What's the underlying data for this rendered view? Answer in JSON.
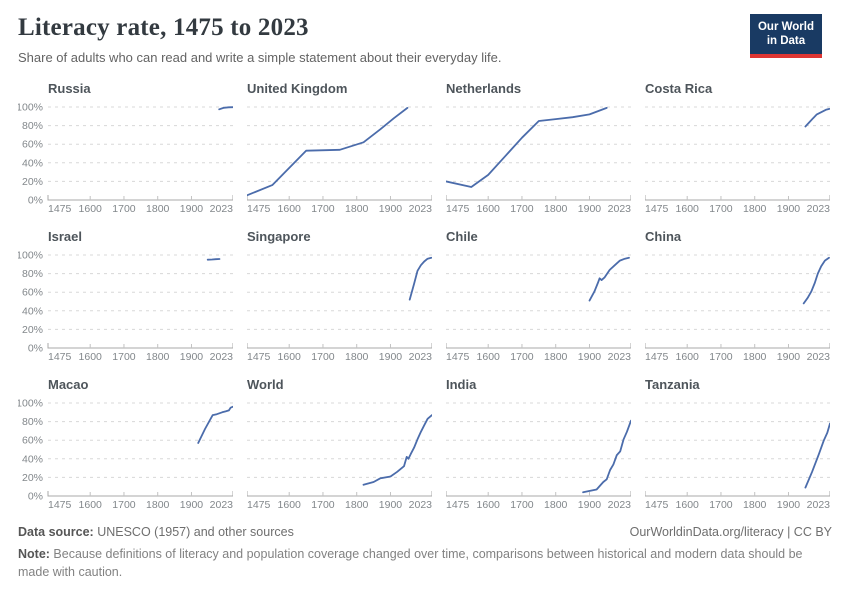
{
  "header": {
    "title": "Literacy rate, 1475 to 2023",
    "subtitle": "Share of adults who can read and write a simple statement about their everyday life.",
    "logo": {
      "line1": "Our World",
      "line2": "in Data",
      "bg_color": "#193A63",
      "accent_color": "#DE3532"
    }
  },
  "footer": {
    "datasource_label": "Data source:",
    "datasource_value": " UNESCO (1957) and other sources",
    "link": "OurWorldinData.org/literacy | CC BY",
    "note_label": "Note:",
    "note_value": " Because definitions of literacy and population coverage changed over time, comparisons between historical and modern data should be made with caution."
  },
  "chart_data": {
    "type": "line",
    "title": "Literacy rate, 1475 to 2023",
    "subtitle": "Share of adults who can read and write a simple statement about their everyday life.",
    "layout": "small-multiples 4x3",
    "x_range": [
      1475,
      2023
    ],
    "y_range": [
      0,
      100
    ],
    "x_ticks": [
      1475,
      1600,
      1700,
      1800,
      1900,
      2023
    ],
    "y_ticks": [
      0,
      20,
      40,
      60,
      80,
      100
    ],
    "y_tick_suffix": "%",
    "grid": "dashed horizontal gridlines",
    "legend": "none",
    "line_color": "#4B6CAB",
    "panels": [
      {
        "name": "Russia",
        "points": [
          [
            1982,
            97.5
          ],
          [
            1995,
            99
          ],
          [
            2010,
            99.7
          ],
          [
            2023,
            99.8
          ]
        ]
      },
      {
        "name": "United Kingdom",
        "points": [
          [
            1475,
            5
          ],
          [
            1550,
            16
          ],
          [
            1650,
            53
          ],
          [
            1750,
            54
          ],
          [
            1820,
            62
          ],
          [
            1870,
            76
          ],
          [
            1910,
            88
          ],
          [
            1950,
            99
          ]
        ]
      },
      {
        "name": "Netherlands",
        "points": [
          [
            1475,
            20
          ],
          [
            1550,
            14
          ],
          [
            1600,
            27
          ],
          [
            1650,
            47
          ],
          [
            1700,
            67
          ],
          [
            1750,
            85
          ],
          [
            1800,
            87
          ],
          [
            1850,
            89
          ],
          [
            1900,
            92
          ],
          [
            1951,
            99
          ]
        ]
      },
      {
        "name": "Costa Rica",
        "points": [
          [
            1950,
            79
          ],
          [
            1963,
            84
          ],
          [
            1973,
            88
          ],
          [
            1984,
            92
          ],
          [
            2000,
            95
          ],
          [
            2011,
            97
          ],
          [
            2021,
            98
          ]
        ]
      },
      {
        "name": "Israel",
        "points": [
          [
            1948,
            95
          ],
          [
            1961,
            95.2
          ],
          [
            1972,
            95.5
          ],
          [
            1983,
            95.7
          ]
        ]
      },
      {
        "name": "Singapore",
        "points": [
          [
            1957,
            52
          ],
          [
            1970,
            69
          ],
          [
            1980,
            83
          ],
          [
            1990,
            89
          ],
          [
            2000,
            93
          ],
          [
            2010,
            96
          ],
          [
            2021,
            97
          ]
        ]
      },
      {
        "name": "Chile",
        "points": [
          [
            1900,
            51
          ],
          [
            1915,
            61
          ],
          [
            1925,
            70
          ],
          [
            1930,
            75
          ],
          [
            1936,
            73
          ],
          [
            1945,
            76
          ],
          [
            1960,
            84
          ],
          [
            1975,
            89
          ],
          [
            1990,
            94
          ],
          [
            2005,
            96
          ],
          [
            2017,
            97
          ]
        ]
      },
      {
        "name": "China",
        "points": [
          [
            1945,
            48
          ],
          [
            1957,
            54
          ],
          [
            1968,
            61
          ],
          [
            1978,
            70
          ],
          [
            1987,
            80
          ],
          [
            1997,
            88
          ],
          [
            2008,
            94
          ],
          [
            2020,
            97
          ]
        ]
      },
      {
        "name": "Macao",
        "points": [
          [
            1920,
            57
          ],
          [
            1940,
            72
          ],
          [
            1963,
            87
          ],
          [
            1975,
            88
          ],
          [
            1991,
            90
          ],
          [
            2001,
            91
          ],
          [
            2011,
            92
          ],
          [
            2016,
            95
          ],
          [
            2023,
            96
          ]
        ]
      },
      {
        "name": "World",
        "points": [
          [
            1820,
            12
          ],
          [
            1850,
            15
          ],
          [
            1870,
            19
          ],
          [
            1900,
            21
          ],
          [
            1920,
            26
          ],
          [
            1940,
            32
          ],
          [
            1948,
            42
          ],
          [
            1953,
            40
          ],
          [
            1960,
            45
          ],
          [
            1970,
            52
          ],
          [
            1980,
            61
          ],
          [
            1990,
            69
          ],
          [
            2000,
            76
          ],
          [
            2010,
            83
          ],
          [
            2023,
            87
          ]
        ]
      },
      {
        "name": "India",
        "points": [
          [
            1881,
            4
          ],
          [
            1901,
            5.5
          ],
          [
            1921,
            7
          ],
          [
            1941,
            15
          ],
          [
            1951,
            18
          ],
          [
            1961,
            28
          ],
          [
            1971,
            34
          ],
          [
            1981,
            44
          ],
          [
            1991,
            48
          ],
          [
            2001,
            61
          ],
          [
            2011,
            69
          ],
          [
            2018,
            76
          ],
          [
            2023,
            81
          ]
        ]
      },
      {
        "name": "Tanzania",
        "points": [
          [
            1950,
            9
          ],
          [
            1970,
            26
          ],
          [
            1990,
            45
          ],
          [
            2005,
            60
          ],
          [
            2015,
            68
          ],
          [
            2023,
            78
          ]
        ]
      }
    ]
  }
}
